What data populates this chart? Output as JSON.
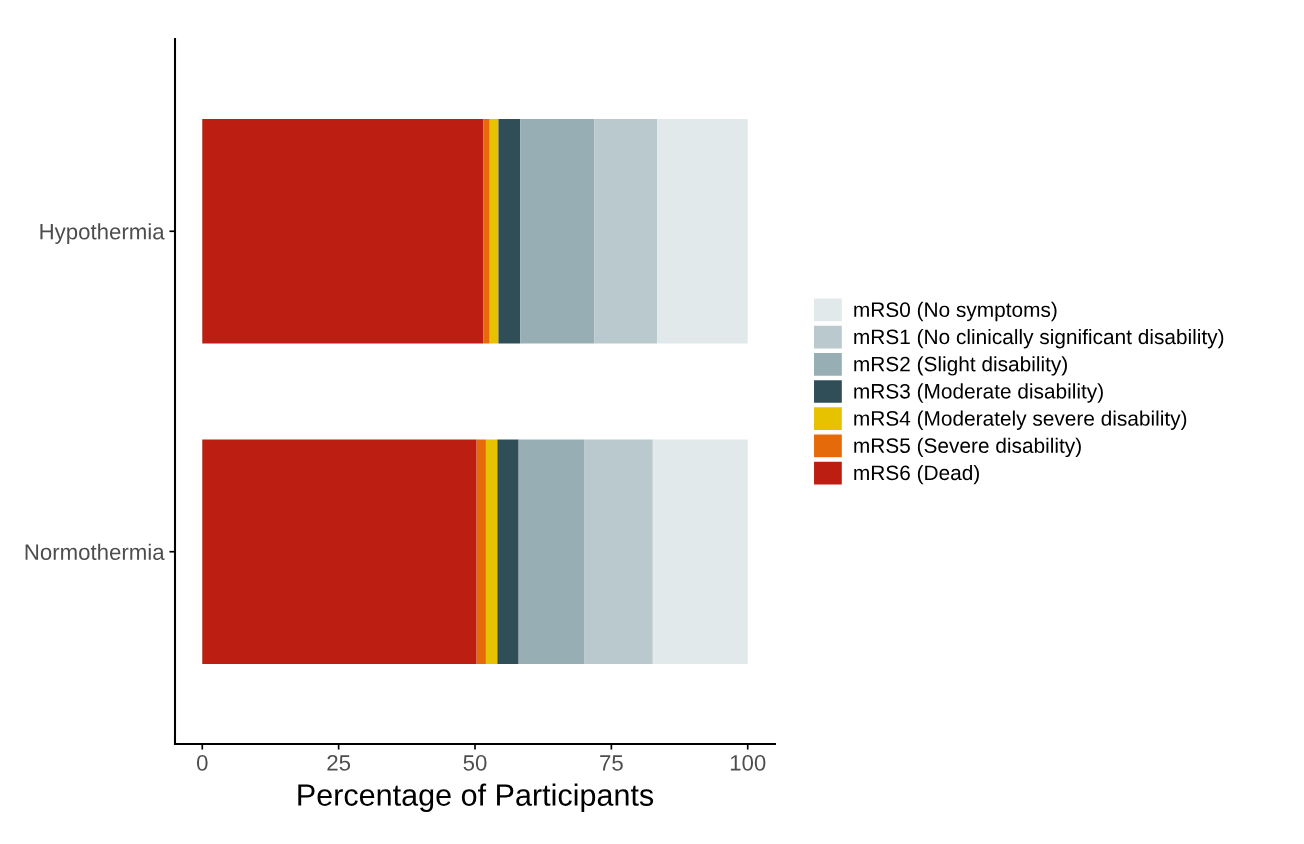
{
  "chart_data": {
    "type": "bar",
    "orientation": "horizontal",
    "stacked": true,
    "xlabel": "Percentage of Participants",
    "categories": [
      "Hypothermia",
      "Normothermia"
    ],
    "xlim": [
      -5,
      105
    ],
    "xticks": [
      0,
      25,
      50,
      75,
      100
    ],
    "grid": false,
    "legend": "right",
    "series": [
      {
        "name": "mRS6 (Dead)",
        "color": "#bc1e12",
        "values": [
          51.5,
          50.3
        ]
      },
      {
        "name": "mRS5 (Severe disability)",
        "color": "#e56b0a",
        "values": [
          1.2,
          1.7
        ]
      },
      {
        "name": "mRS4 (Moderately severe disability)",
        "color": "#e6c200",
        "values": [
          1.6,
          2.1
        ]
      },
      {
        "name": "mRS3 (Moderate disability)",
        "color": "#2f4e57",
        "values": [
          4.0,
          3.9
        ]
      },
      {
        "name": "mRS2 (Slight disability)",
        "color": "#97afb4",
        "values": [
          13.6,
          12.1
        ]
      },
      {
        "name": "mRS1 (No clinically significant disability)",
        "color": "#b9c9cd",
        "values": [
          11.5,
          12.5
        ]
      },
      {
        "name": "mRS0 (No symptoms)",
        "color": "#e1e9eb",
        "values": [
          16.6,
          17.4
        ]
      }
    ]
  }
}
